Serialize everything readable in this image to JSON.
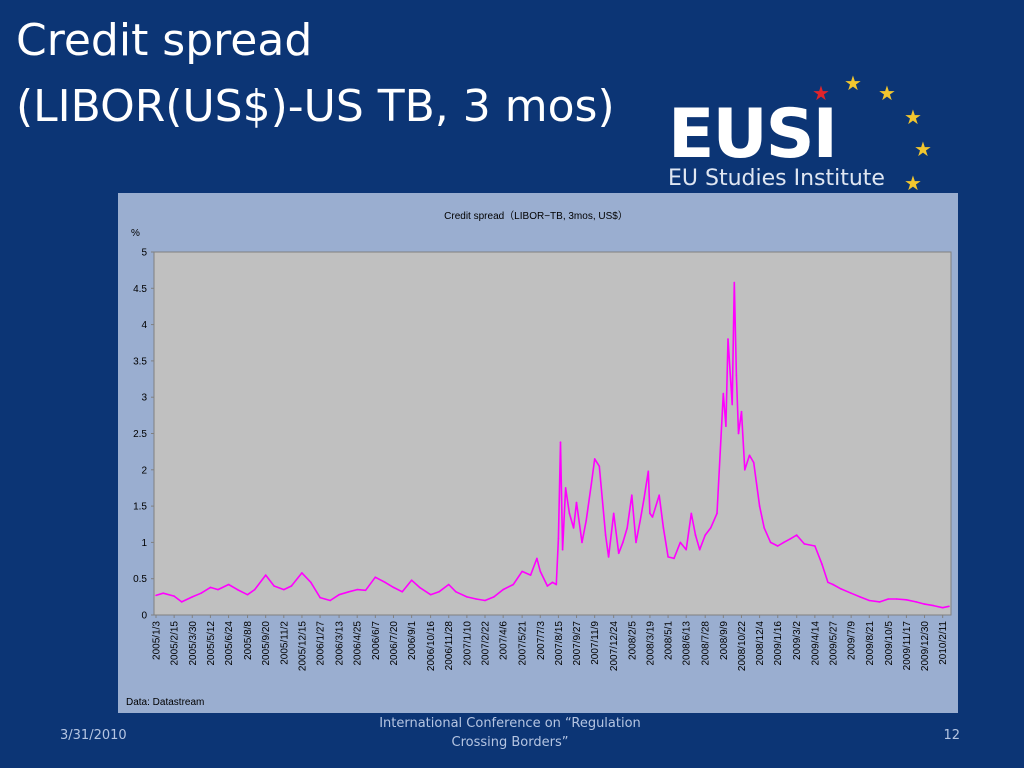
{
  "slide": {
    "title_line1": "Credit spread",
    "title_line2": "(LIBOR(US$)-US TB, 3 mos)",
    "footer_date": "3/31/2010",
    "footer_center": "International Conference on “Regulation Crossing Borders”",
    "page_number": "12"
  },
  "logo": {
    "word": "EUSI",
    "subtitle": "EU Studies Institute",
    "star_color": "#f2c62f",
    "accent_star_color": "#e0242b"
  },
  "colors": {
    "background": "#0c3575",
    "chart_panel": "#9aaed0",
    "plot_area": "#c0c0c0",
    "series_line": "#ff00ff"
  },
  "chart_data": {
    "type": "line",
    "title": "Credit spread（LIBOR−TB, 3mos, US$）",
    "ylabel": "%",
    "source": "Data: Datastream",
    "ylim": [
      0,
      5
    ],
    "y_ticks": [
      "0",
      "0.5",
      "1",
      "1.5",
      "2",
      "2.5",
      "3",
      "3.5",
      "4",
      "4.5",
      "5"
    ],
    "grid": false,
    "x_tick_labels": [
      "2005/1/3",
      "2005/2/15",
      "2005/3/30",
      "2005/5/12",
      "2005/6/24",
      "2005/8/8",
      "2005/9/20",
      "2005/11/2",
      "2005/12/15",
      "2006/1/27",
      "2006/3/13",
      "2006/4/25",
      "2006/6/7",
      "2006/7/20",
      "2006/9/1",
      "2006/10/16",
      "2006/11/28",
      "2007/1/10",
      "2007/2/22",
      "2007/4/6",
      "2007/5/21",
      "2007/7/3",
      "2007/8/15",
      "2007/9/27",
      "2007/11/9",
      "2007/12/24",
      "2008/2/5",
      "2008/3/19",
      "2008/5/1",
      "2008/6/13",
      "2008/7/28",
      "2008/9/9",
      "2008/10/22",
      "2008/12/4",
      "2009/1/16",
      "2009/3/2",
      "2009/4/14",
      "2009/5/27",
      "2009/7/9",
      "2009/8/21",
      "2009/10/5",
      "2009/11/17",
      "2009/12/30",
      "2010/2/11"
    ],
    "series": [
      {
        "name": "",
        "x": [
          "2005/1/3",
          "2005/1/20",
          "2005/2/15",
          "2005/3/5",
          "2005/3/30",
          "2005/4/20",
          "2005/5/12",
          "2005/5/30",
          "2005/6/24",
          "2005/7/15",
          "2005/8/8",
          "2005/8/25",
          "2005/9/20",
          "2005/10/10",
          "2005/11/2",
          "2005/11/20",
          "2005/12/15",
          "2006/1/5",
          "2006/1/27",
          "2006/2/20",
          "2006/3/13",
          "2006/4/5",
          "2006/4/25",
          "2006/5/15",
          "2006/6/7",
          "2006/6/30",
          "2006/7/20",
          "2006/8/10",
          "2006/9/1",
          "2006/9/20",
          "2006/10/16",
          "2006/11/5",
          "2006/11/28",
          "2006/12/15",
          "2007/1/10",
          "2007/2/1",
          "2007/2/22",
          "2007/3/15",
          "2007/4/6",
          "2007/4/30",
          "2007/5/21",
          "2007/6/10",
          "2007/6/25",
          "2007/7/3",
          "2007/7/20",
          "2007/8/1",
          "2007/8/10",
          "2007/8/15",
          "2007/8/20",
          "2007/8/25",
          "2007/9/1",
          "2007/9/10",
          "2007/9/20",
          "2007/9/27",
          "2007/10/10",
          "2007/10/20",
          "2007/11/1",
          "2007/11/9",
          "2007/11/20",
          "2007/12/5",
          "2007/12/12",
          "2007/12/24",
          "2008/1/5",
          "2008/1/15",
          "2008/1/25",
          "2008/2/5",
          "2008/2/15",
          "2008/2/25",
          "2008/3/5",
          "2008/3/15",
          "2008/3/19",
          "2008/3/25",
          "2008/4/10",
          "2008/4/20",
          "2008/5/1",
          "2008/5/15",
          "2008/5/30",
          "2008/6/13",
          "2008/6/25",
          "2008/7/5",
          "2008/7/15",
          "2008/7/28",
          "2008/8/10",
          "2008/8/25",
          "2008/9/9",
          "2008/9/15",
          "2008/9/20",
          "2008/9/30",
          "2008/10/5",
          "2008/10/10",
          "2008/10/15",
          "2008/10/22",
          "2008/10/30",
          "2008/11/10",
          "2008/11/20",
          "2008/12/4",
          "2008/12/15",
          "2008/12/30",
          "2009/1/16",
          "2009/1/30",
          "2009/2/15",
          "2009/3/2",
          "2009/3/20",
          "2009/4/14",
          "2009/5/1",
          "2009/5/15",
          "2009/5/27",
          "2009/6/15",
          "2009/7/9",
          "2009/7/30",
          "2009/8/21",
          "2009/9/15",
          "2009/10/5",
          "2009/10/25",
          "2009/11/17",
          "2009/12/10",
          "2009/12/30",
          "2010/1/20",
          "2010/2/11",
          "2010/2/26"
        ],
        "values": [
          0.27,
          0.3,
          0.26,
          0.18,
          0.25,
          0.3,
          0.38,
          0.35,
          0.42,
          0.35,
          0.28,
          0.35,
          0.55,
          0.4,
          0.35,
          0.4,
          0.58,
          0.45,
          0.24,
          0.2,
          0.28,
          0.32,
          0.35,
          0.34,
          0.52,
          0.45,
          0.38,
          0.32,
          0.48,
          0.38,
          0.28,
          0.32,
          0.42,
          0.32,
          0.25,
          0.22,
          0.2,
          0.25,
          0.35,
          0.42,
          0.6,
          0.55,
          0.78,
          0.6,
          0.4,
          0.45,
          0.42,
          1.05,
          2.38,
          0.9,
          1.75,
          1.4,
          1.2,
          1.55,
          1.0,
          1.3,
          1.8,
          2.15,
          2.05,
          1.1,
          0.8,
          1.4,
          0.85,
          1.0,
          1.2,
          1.65,
          1.0,
          1.3,
          1.6,
          1.98,
          1.4,
          1.35,
          1.65,
          1.2,
          0.8,
          0.78,
          1.0,
          0.9,
          1.4,
          1.1,
          0.9,
          1.1,
          1.2,
          1.4,
          3.05,
          2.6,
          3.8,
          2.9,
          4.58,
          3.3,
          2.5,
          2.8,
          2.0,
          2.2,
          2.1,
          1.5,
          1.2,
          1.0,
          0.95,
          1.0,
          1.05,
          1.1,
          0.98,
          0.95,
          0.7,
          0.45,
          0.42,
          0.36,
          0.3,
          0.25,
          0.2,
          0.18,
          0.22,
          0.22,
          0.21,
          0.18,
          0.15,
          0.13,
          0.1,
          0.12
        ]
      }
    ]
  }
}
